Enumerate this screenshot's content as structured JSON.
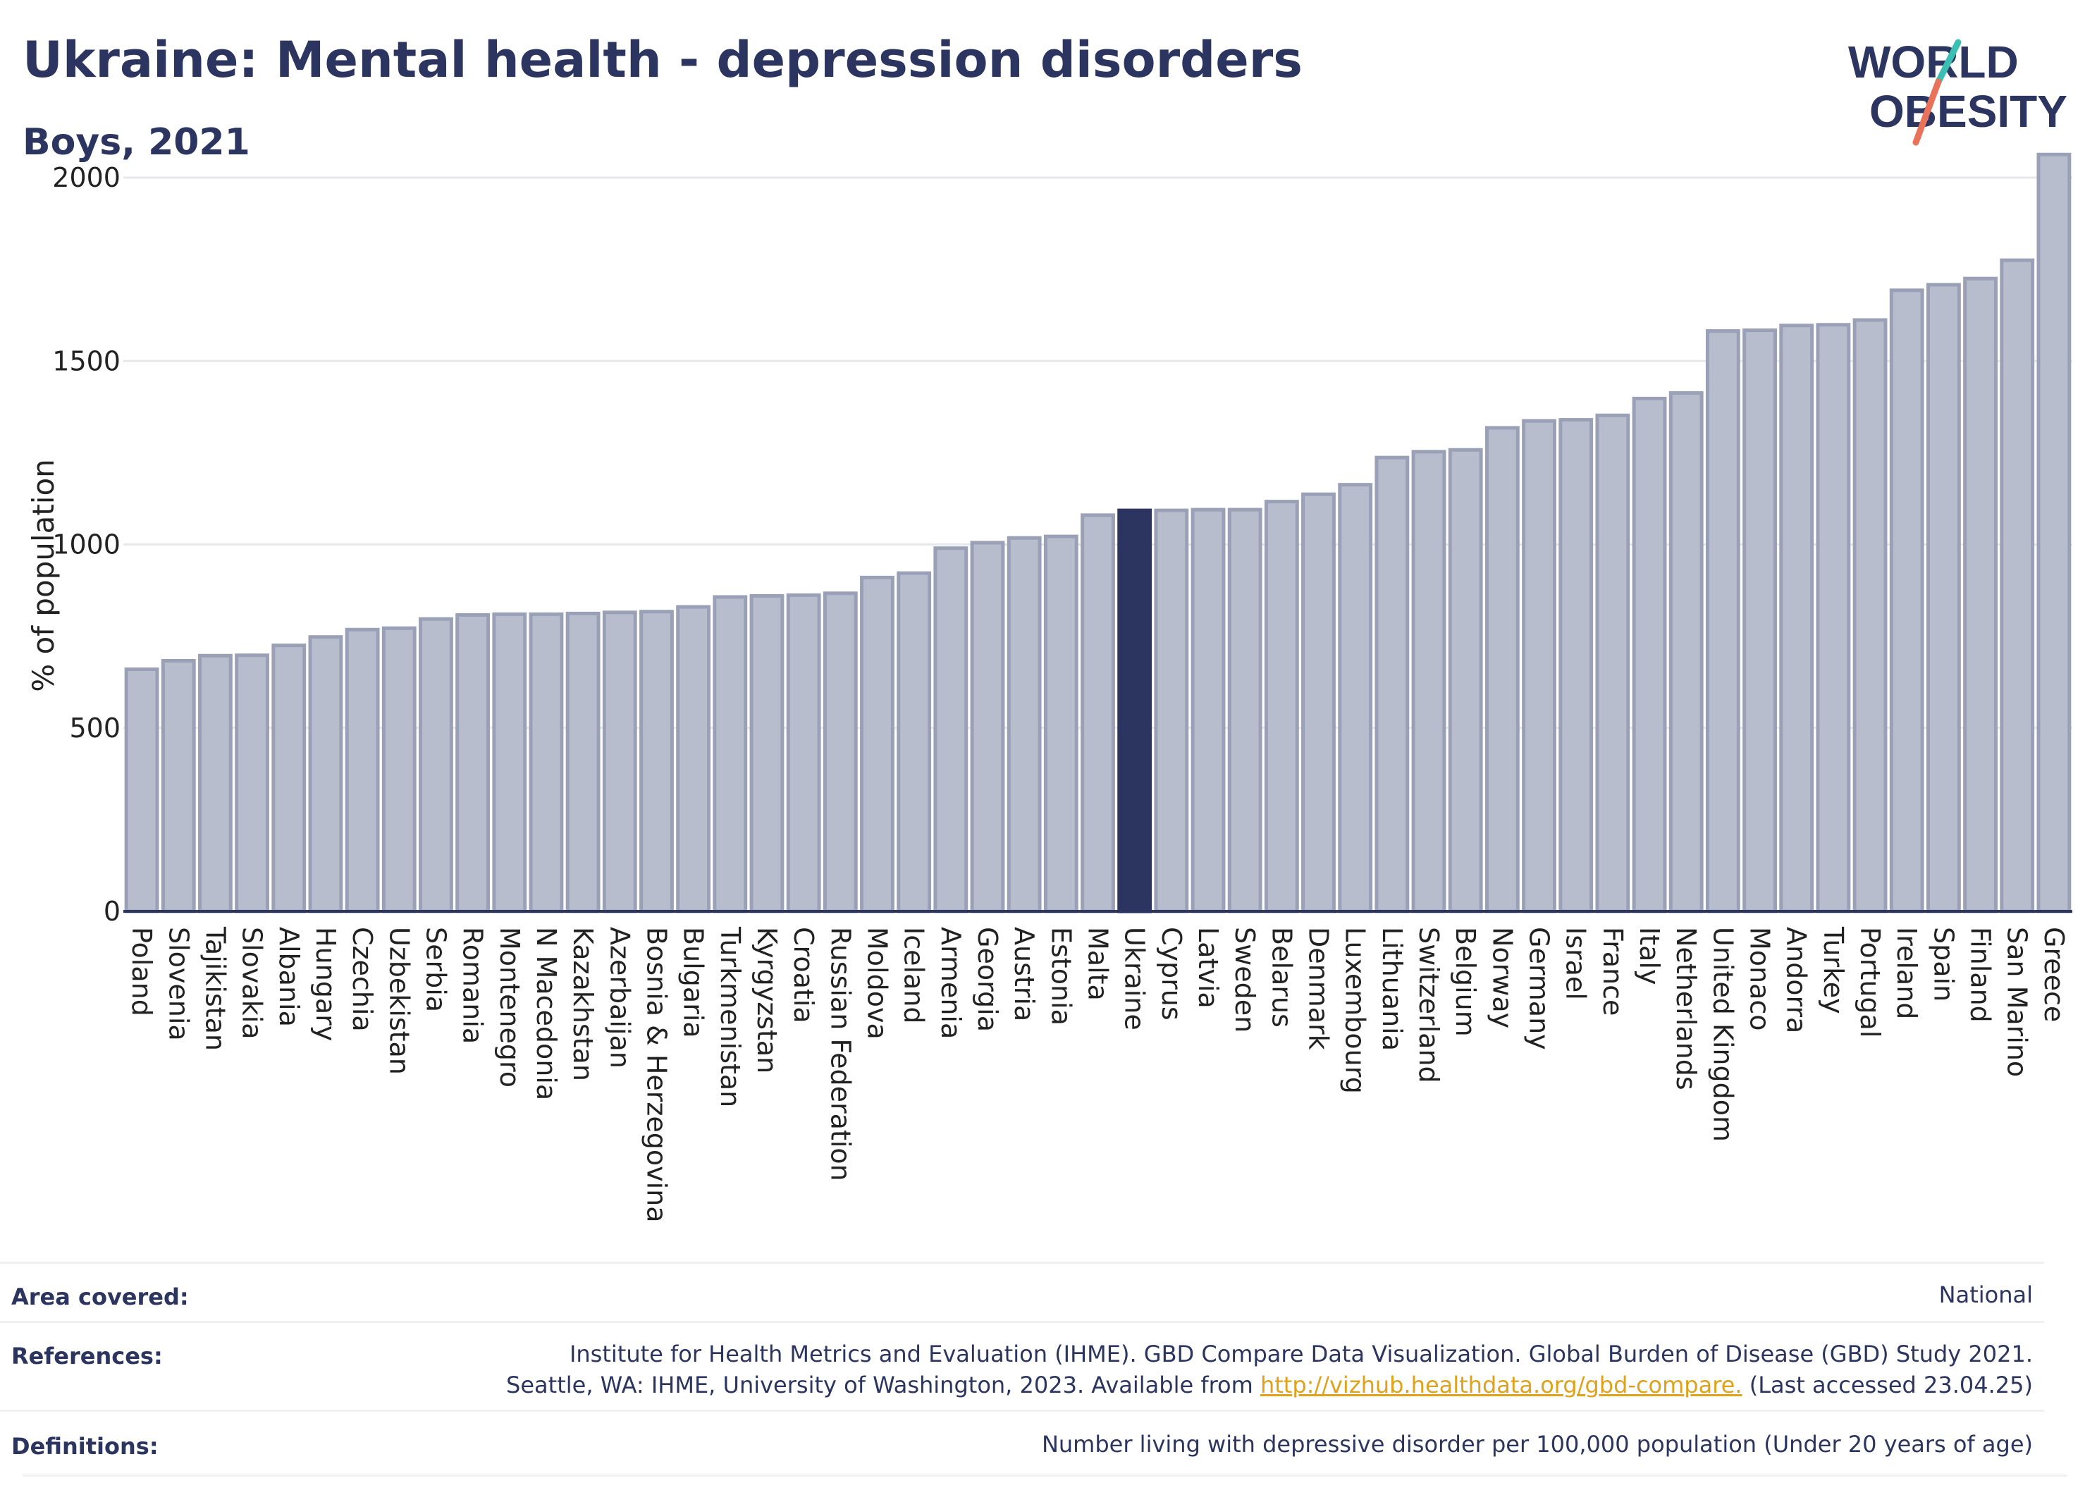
{
  "header": {
    "title": "Ukraine: Mental health - depression disorders",
    "subtitle": "Boys, 2021"
  },
  "logo": {
    "line1": "WORLD",
    "line2": "OBESITY",
    "text_color": "#2b3560",
    "accent_colors": [
      "#3bbfb3",
      "#e8735a"
    ]
  },
  "chart_data": {
    "type": "bar",
    "title": "Ukraine: Mental health - depression disorders",
    "subtitle": "Boys, 2021",
    "ylabel": "% of population",
    "xlabel": "",
    "ylim": [
      0,
      2100
    ],
    "yticks": [
      0,
      500,
      1000,
      1500,
      2000
    ],
    "grid": true,
    "highlight": "Ukraine",
    "colors": {
      "bar": "#b8bdcd",
      "bar_edge": "#9aa0b6",
      "highlight": "#2b3560"
    },
    "categories": [
      "Poland",
      "Slovenia",
      "Tajikistan",
      "Slovakia",
      "Albania",
      "Hungary",
      "Czechia",
      "Uzbekistan",
      "Serbia",
      "Romania",
      "Montenegro",
      "N Macedonia",
      "Kazakhstan",
      "Azerbaijan",
      "Bosnia & Herzegovina",
      "Bulgaria",
      "Turkmenistan",
      "Kyrgyzstan",
      "Croatia",
      "Russian Federation",
      "Moldova",
      "Iceland",
      "Armenia",
      "Georgia",
      "Austria",
      "Estonia",
      "Malta",
      "Ukraine",
      "Cyprus",
      "Latvia",
      "Sweden",
      "Belarus",
      "Denmark",
      "Luxembourg",
      "Lithuania",
      "Switzerland",
      "Belgium",
      "Norway",
      "Germany",
      "Israel",
      "France",
      "Italy",
      "Netherlands",
      "United Kingdom",
      "Monaco",
      "Andorra",
      "Turkey",
      "Portugal",
      "Ireland",
      "Spain",
      "Finland",
      "San Marino",
      "Greece"
    ],
    "values": [
      660,
      683,
      697,
      698,
      725,
      748,
      768,
      772,
      797,
      808,
      810,
      810,
      812,
      815,
      817,
      830,
      857,
      860,
      862,
      867,
      910,
      922,
      990,
      1005,
      1018,
      1022,
      1080,
      1093,
      1093,
      1095,
      1095,
      1117,
      1137,
      1163,
      1237,
      1253,
      1258,
      1318,
      1337,
      1340,
      1352,
      1398,
      1413,
      1582,
      1584,
      1597,
      1599,
      1612,
      1693,
      1708,
      1725,
      1775,
      2063
    ]
  },
  "meta": {
    "area_label": "Area covered:",
    "area_value": "National",
    "references_label": "References:",
    "references_line1": "Institute for Health Metrics and Evaluation (IHME). GBD Compare Data Visualization. Global Burden of Disease (GBD) Study 2021.",
    "references_line2_pre": "Seattle, WA: IHME, University of Washington, 2023. Available from ",
    "references_link": "http://vizhub.healthdata.org/gbd-compare.",
    "references_line2_post": " (Last accessed 23.04.25)",
    "definitions_label": "Definitions:",
    "definitions_value": "Number living with depressive disorder per 100,000 population (Under 20 years of age)"
  }
}
